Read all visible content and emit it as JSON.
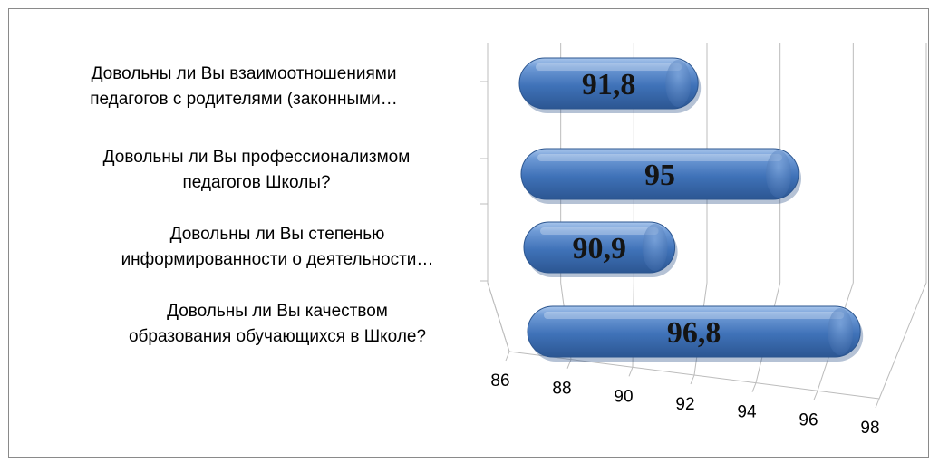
{
  "chart_data": {
    "type": "bar",
    "orientation": "horizontal",
    "style": "3d-cylinder",
    "title": "",
    "xlabel": "",
    "ylabel": "",
    "xlim": [
      86,
      98
    ],
    "ticks": [
      86,
      88,
      90,
      92,
      94,
      96,
      98
    ],
    "tick_labels": [
      "86",
      "88",
      "90",
      "92",
      "94",
      "96",
      "98"
    ],
    "grid": true,
    "legend": "none",
    "bar_color": "#4a7ebb",
    "categories": [
      "Довольны ли Вы взаимоотношениями\nпедагогов с родителями (законными…",
      "Довольны ли Вы профессионализмом\nпедагогов Школы?",
      "Довольны ли Вы степенью\nинформированности о деятельности…",
      "Довольны ли Вы качеством\nобразования обучающихся в Школе?"
    ],
    "values": [
      91.8,
      95,
      90.9,
      96.8
    ],
    "data_labels": [
      "91,8",
      "95",
      "90,9",
      "96,8"
    ]
  }
}
